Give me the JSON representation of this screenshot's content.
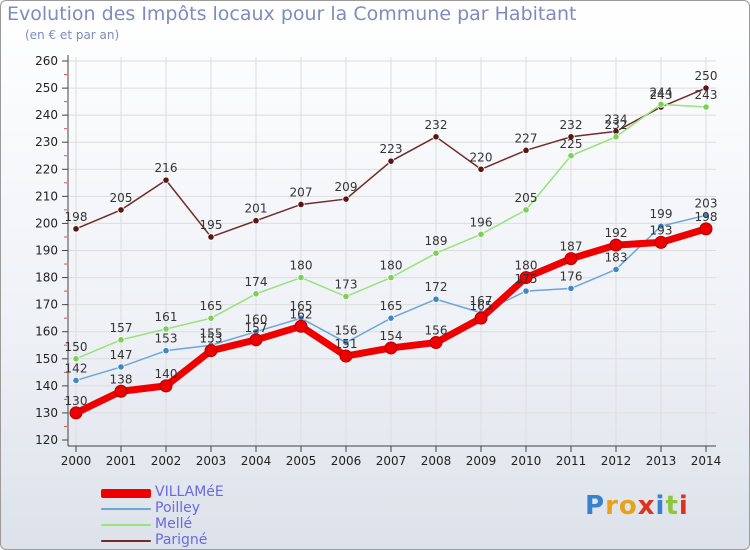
{
  "header": {
    "title": "Evolution des Impôts locaux pour la Commune par Habitant",
    "subtitle": "(en € et par an)"
  },
  "logo": {
    "text": "Proxiti"
  },
  "colors": {
    "villamee": "#ee0000",
    "poilley": "#6ca6d9",
    "melle": "#99e27b",
    "parigne": "#722a2a",
    "grid": "#dddddd",
    "axis": "#444444"
  },
  "chart_data": {
    "type": "line",
    "title": "Evolution des Impôts locaux pour la Commune par Habitant",
    "subtitle": "(en € et par an)",
    "xlabel": "",
    "ylabel": "",
    "x": [
      "2000",
      "2001",
      "2002",
      "2003",
      "2004",
      "2005",
      "2006",
      "2007",
      "2008",
      "2009",
      "2010",
      "2011",
      "2012",
      "2013",
      "2014"
    ],
    "ylim": [
      120,
      260
    ],
    "yticks": [
      120,
      130,
      140,
      150,
      160,
      170,
      180,
      190,
      200,
      210,
      220,
      230,
      240,
      250,
      260
    ],
    "grid": true,
    "legend_position": "bottom-left",
    "series": [
      {
        "key": "villamee",
        "name": "VILLAMéE",
        "values": [
          130,
          138,
          140,
          153,
          157,
          162,
          151,
          154,
          156,
          165,
          180,
          187,
          192,
          193,
          198
        ]
      },
      {
        "key": "poilley",
        "name": "Poilley",
        "values": [
          142,
          147,
          153,
          155,
          160,
          165,
          156,
          165,
          172,
          167,
          175,
          176,
          183,
          199,
          203
        ]
      },
      {
        "key": "melle",
        "name": "Mellé",
        "values": [
          150,
          157,
          161,
          165,
          174,
          180,
          173,
          180,
          189,
          196,
          205,
          225,
          232,
          244,
          243
        ]
      },
      {
        "key": "parigne",
        "name": "Parigné",
        "values": [
          198,
          205,
          216,
          195,
          201,
          207,
          209,
          223,
          232,
          220,
          227,
          232,
          234,
          243,
          250
        ]
      }
    ]
  }
}
